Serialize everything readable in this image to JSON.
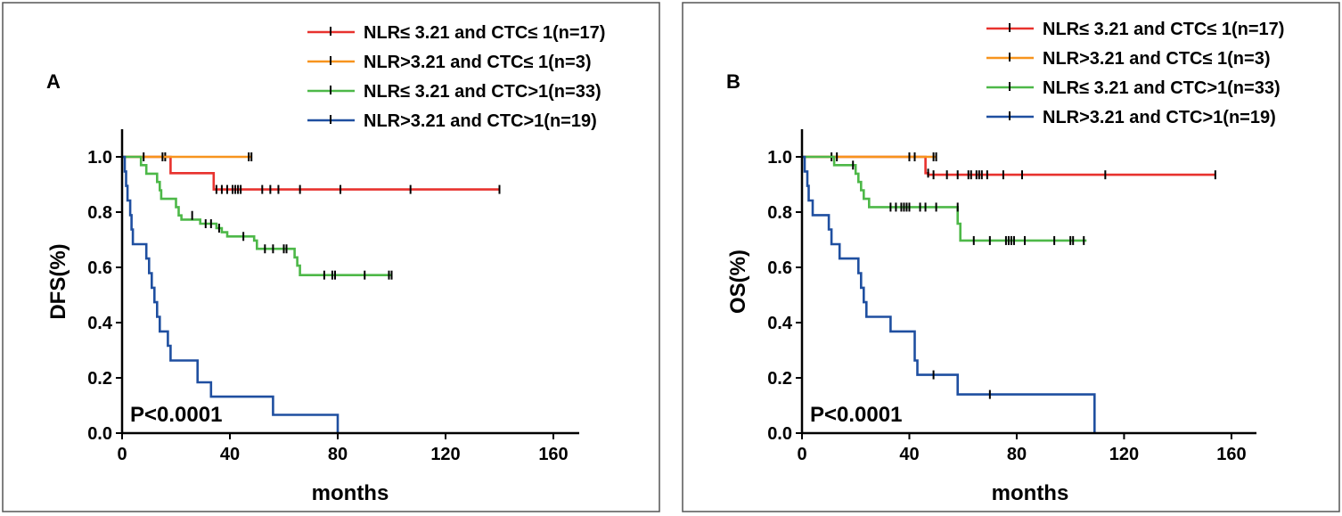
{
  "colors": {
    "red": "#e8322e",
    "orange": "#f7941d",
    "green": "#4db848",
    "blue": "#1f4fa0"
  },
  "legend": [
    {
      "label": "NLR≤ 3.21 and CTC≤ 1(n=17)",
      "color": "#e8322e"
    },
    {
      "label": "NLR>3.21 and CTC≤ 1(n=3)",
      "color": "#f7941d"
    },
    {
      "label": "NLR≤ 3.21 and CTC>1(n=33)",
      "color": "#4db848"
    },
    {
      "label": "NLR>3.21 and CTC>1(n=19)",
      "color": "#1f4fa0"
    }
  ],
  "chart_data": [
    {
      "type": "line",
      "subtype": "kaplan-meier",
      "panel_label": "A",
      "ylabel": "DFS(%)",
      "xlabel": "months",
      "xlim": [
        0,
        170
      ],
      "ylim": [
        0,
        1.1
      ],
      "xticks": [
        0,
        40,
        80,
        120,
        160
      ],
      "yticks": [
        0.0,
        0.2,
        0.4,
        0.6,
        0.8,
        1.0
      ],
      "xtick_labels": [
        "0",
        "40",
        "80",
        "120",
        "160"
      ],
      "ytick_labels": [
        "0.0",
        "0.2",
        "0.4",
        "0.6",
        "0.8",
        "1.0"
      ],
      "annotation": "P<0.0001",
      "series": [
        {
          "name": "NLR≤ 3.21 and CTC≤ 1(n=17)",
          "color": "#e8322e",
          "steps": [
            [
              0,
              1.0
            ],
            [
              18,
              0.941
            ],
            [
              34,
              0.882
            ],
            [
              140,
              0.882
            ]
          ],
          "censored": [
            [
              16,
              1.0
            ],
            [
              35,
              0.882
            ],
            [
              37,
              0.882
            ],
            [
              39,
              0.882
            ],
            [
              41,
              0.882
            ],
            [
              42,
              0.882
            ],
            [
              43,
              0.882
            ],
            [
              44,
              0.882
            ],
            [
              52,
              0.882
            ],
            [
              55,
              0.882
            ],
            [
              58,
              0.882
            ],
            [
              66,
              0.882
            ],
            [
              81,
              0.882
            ],
            [
              107,
              0.882
            ],
            [
              140,
              0.882
            ]
          ]
        },
        {
          "name": "NLR>3.21 and CTC≤ 1(n=3)",
          "color": "#f7941d",
          "steps": [
            [
              0,
              1.0
            ],
            [
              48,
              1.0
            ]
          ],
          "censored": [
            [
              15,
              1.0
            ],
            [
              47,
              1.0
            ],
            [
              48,
              1.0
            ]
          ]
        },
        {
          "name": "NLR≤ 3.21 and CTC>1(n=33)",
          "color": "#4db848",
          "steps": [
            [
              0,
              1.0
            ],
            [
              7,
              0.97
            ],
            [
              9,
              0.939
            ],
            [
              13,
              0.909
            ],
            [
              14,
              0.879
            ],
            [
              14.5,
              0.848
            ],
            [
              20,
              0.818
            ],
            [
              21,
              0.788
            ],
            [
              22,
              0.773
            ],
            [
              29,
              0.758
            ],
            [
              35,
              0.742
            ],
            [
              37,
              0.727
            ],
            [
              39,
              0.712
            ],
            [
              49,
              0.697
            ],
            [
              50,
              0.667
            ],
            [
              64,
              0.636
            ],
            [
              65,
              0.606
            ],
            [
              66,
              0.572
            ],
            [
              100,
              0.572
            ]
          ],
          "censored": [
            [
              8,
              1.0
            ],
            [
              26,
              0.788
            ],
            [
              31,
              0.758
            ],
            [
              33,
              0.758
            ],
            [
              36,
              0.742
            ],
            [
              45,
              0.712
            ],
            [
              53,
              0.667
            ],
            [
              56,
              0.667
            ],
            [
              60,
              0.667
            ],
            [
              61,
              0.667
            ],
            [
              75,
              0.572
            ],
            [
              78,
              0.572
            ],
            [
              79,
              0.572
            ],
            [
              90,
              0.572
            ],
            [
              99,
              0.572
            ],
            [
              100,
              0.572
            ]
          ]
        },
        {
          "name": "NLR>3.21 and CTC>1(n=19)",
          "color": "#1f4fa0",
          "steps": [
            [
              0,
              1.0
            ],
            [
              1,
              0.947
            ],
            [
              1.5,
              0.895
            ],
            [
              2,
              0.842
            ],
            [
              3,
              0.789
            ],
            [
              3.5,
              0.737
            ],
            [
              4,
              0.684
            ],
            [
              9,
              0.632
            ],
            [
              10,
              0.579
            ],
            [
              11,
              0.526
            ],
            [
              12,
              0.474
            ],
            [
              13,
              0.421
            ],
            [
              14,
              0.368
            ],
            [
              17,
              0.316
            ],
            [
              18,
              0.263
            ],
            [
              28,
              0.184
            ],
            [
              33,
              0.132
            ],
            [
              56,
              0.066
            ],
            [
              80,
              0.0
            ]
          ],
          "censored": []
        }
      ]
    },
    {
      "type": "line",
      "subtype": "kaplan-meier",
      "panel_label": "B",
      "ylabel": "OS(%)",
      "xlabel": "months",
      "xlim": [
        0,
        170
      ],
      "ylim": [
        0,
        1.1
      ],
      "xticks": [
        0,
        40,
        80,
        120,
        160
      ],
      "yticks": [
        0.0,
        0.2,
        0.4,
        0.6,
        0.8,
        1.0
      ],
      "xtick_labels": [
        "0",
        "40",
        "80",
        "120",
        "160"
      ],
      "ytick_labels": [
        "0.0",
        "0.2",
        "0.4",
        "0.6",
        "0.8",
        "1.0"
      ],
      "annotation": "P<0.0001",
      "series": [
        {
          "name": "NLR≤ 3.21 and CTC≤ 1(n=17)",
          "color": "#e8322e",
          "steps": [
            [
              0,
              1.0
            ],
            [
              46,
              0.941
            ],
            [
              47,
              0.935
            ],
            [
              154,
              0.935
            ]
          ],
          "censored": [
            [
              47,
              0.941
            ],
            [
              49,
              0.935
            ],
            [
              54,
              0.935
            ],
            [
              58,
              0.935
            ],
            [
              62,
              0.935
            ],
            [
              63,
              0.935
            ],
            [
              65,
              0.935
            ],
            [
              66,
              0.935
            ],
            [
              67,
              0.935
            ],
            [
              69,
              0.935
            ],
            [
              75,
              0.935
            ],
            [
              82,
              0.935
            ],
            [
              113,
              0.935
            ],
            [
              154,
              0.935
            ]
          ]
        },
        {
          "name": "NLR>3.21 and CTC≤ 1(n=3)",
          "color": "#f7941d",
          "steps": [
            [
              0,
              1.0
            ],
            [
              50,
              1.0
            ]
          ],
          "censored": [
            [
              11,
              1.0
            ],
            [
              40,
              1.0
            ],
            [
              42,
              1.0
            ],
            [
              49,
              1.0
            ],
            [
              50,
              1.0
            ]
          ]
        },
        {
          "name": "NLR≤ 3.21 and CTC>1(n=33)",
          "color": "#4db848",
          "steps": [
            [
              0,
              1.0
            ],
            [
              12,
              0.97
            ],
            [
              20,
              0.939
            ],
            [
              21,
              0.909
            ],
            [
              22,
              0.879
            ],
            [
              23,
              0.848
            ],
            [
              25,
              0.818
            ],
            [
              58,
              0.758
            ],
            [
              59,
              0.697
            ],
            [
              106,
              0.697
            ]
          ],
          "censored": [
            [
              13,
              1.0
            ],
            [
              19,
              0.97
            ],
            [
              33,
              0.818
            ],
            [
              35,
              0.818
            ],
            [
              37,
              0.818
            ],
            [
              38,
              0.818
            ],
            [
              39,
              0.818
            ],
            [
              40,
              0.818
            ],
            [
              44,
              0.818
            ],
            [
              46,
              0.818
            ],
            [
              50,
              0.818
            ],
            [
              58,
              0.818
            ],
            [
              64,
              0.697
            ],
            [
              70,
              0.697
            ],
            [
              76,
              0.697
            ],
            [
              77,
              0.697
            ],
            [
              78,
              0.697
            ],
            [
              79,
              0.697
            ],
            [
              83,
              0.697
            ],
            [
              94,
              0.697
            ],
            [
              100,
              0.697
            ],
            [
              101,
              0.697
            ],
            [
              105,
              0.697
            ]
          ]
        },
        {
          "name": "NLR>3.21 and CTC>1(n=19)",
          "color": "#1f4fa0",
          "steps": [
            [
              0,
              1.0
            ],
            [
              1,
              0.947
            ],
            [
              2,
              0.895
            ],
            [
              2.5,
              0.842
            ],
            [
              4,
              0.789
            ],
            [
              10,
              0.737
            ],
            [
              11,
              0.684
            ],
            [
              14,
              0.632
            ],
            [
              21,
              0.579
            ],
            [
              22,
              0.526
            ],
            [
              23,
              0.474
            ],
            [
              24,
              0.421
            ],
            [
              33,
              0.368
            ],
            [
              42,
              0.263
            ],
            [
              43,
              0.211
            ],
            [
              58,
              0.14
            ],
            [
              109,
              0.0
            ]
          ],
          "censored": [
            [
              49,
              0.211
            ],
            [
              70,
              0.14
            ]
          ]
        }
      ]
    }
  ]
}
